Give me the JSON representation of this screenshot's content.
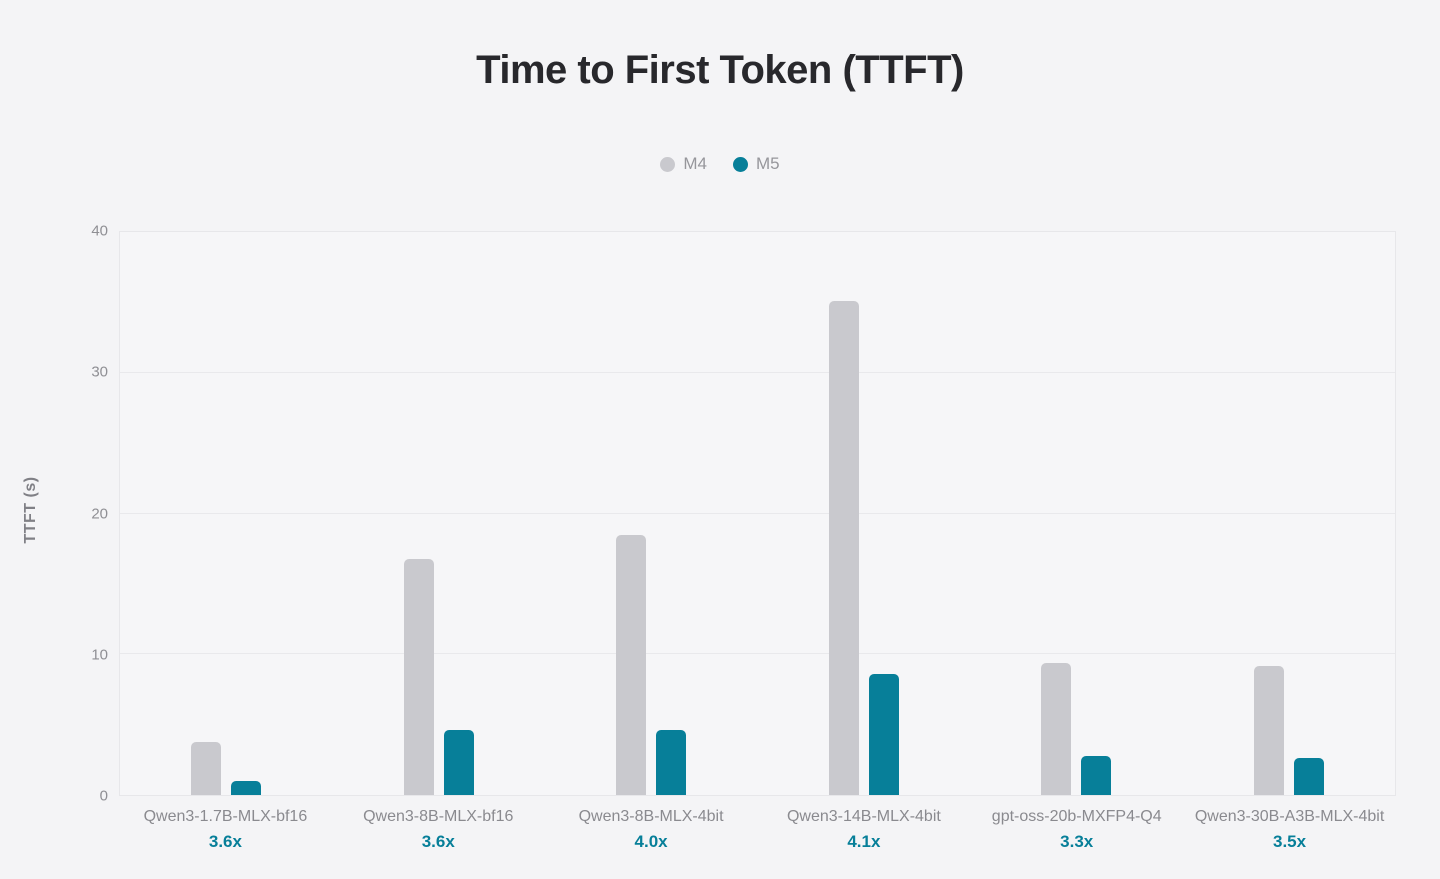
{
  "title": "Time to First Token (TTFT)",
  "colors": {
    "background": "#f4f4f6",
    "plot_background": "#f6f6f8",
    "grid": "#e9e9ec",
    "m4_gray": "#c9c9ce",
    "m5_teal": "#077f99",
    "title_text": "#28282c",
    "axis_text": "#8f8f94",
    "category_text": "#8a8a8f"
  },
  "legend": [
    {
      "label": "M4",
      "color": "#c9c9ce"
    },
    {
      "label": "M5",
      "color": "#077f99"
    }
  ],
  "chart_data": {
    "type": "bar",
    "title": "Time to First Token (TTFT)",
    "xlabel": "",
    "ylabel": "TTFT (s)",
    "ylim": [
      0,
      40
    ],
    "yticks": [
      0,
      10,
      20,
      30,
      40
    ],
    "grid": true,
    "legend_position": "top",
    "categories": [
      "Qwen3-1.7B-MLX-bf16",
      "Qwen3-8B-MLX-bf16",
      "Qwen3-8B-MLX-4bit",
      "Qwen3-14B-MLX-4bit",
      "gpt-oss-20b-MXFP4-Q4",
      "Qwen3-30B-A3B-MLX-4bit"
    ],
    "speedups": [
      "3.6x",
      "3.6x",
      "4.0x",
      "4.1x",
      "3.3x",
      "3.5x"
    ],
    "series": [
      {
        "name": "M4",
        "color": "#c9c9ce",
        "values": [
          3.8,
          16.8,
          18.5,
          35.1,
          9.4,
          9.2
        ]
      },
      {
        "name": "M5",
        "color": "#077f99",
        "values": [
          1.0,
          4.6,
          4.6,
          8.6,
          2.8,
          2.6
        ]
      }
    ]
  }
}
